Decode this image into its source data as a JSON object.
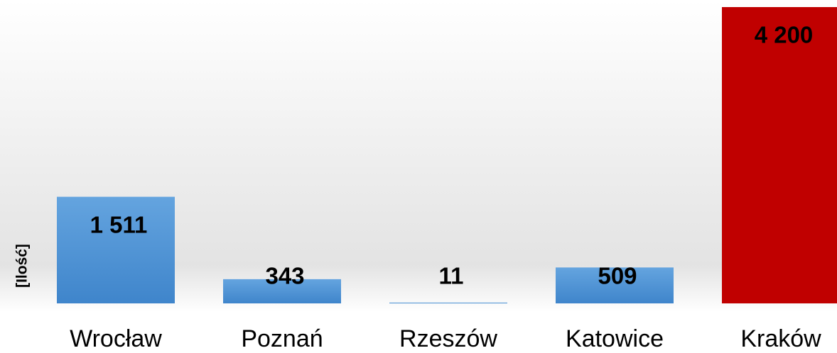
{
  "chart_data": {
    "type": "bar",
    "ylabel": "[Ilość]",
    "categories": [
      "Wrocław",
      "Poznań",
      "Rzeszów",
      "Katowice",
      "Kraków"
    ],
    "values": [
      1511,
      343,
      11,
      509,
      4200
    ],
    "value_labels": [
      "1 511",
      "343",
      "11",
      "509",
      "4 200"
    ],
    "colors": [
      "#5b9bd5",
      "#5b9bd5",
      "#5b9bd5",
      "#5b9bd5",
      "#c00000"
    ],
    "ylim": [
      0,
      4200
    ]
  }
}
